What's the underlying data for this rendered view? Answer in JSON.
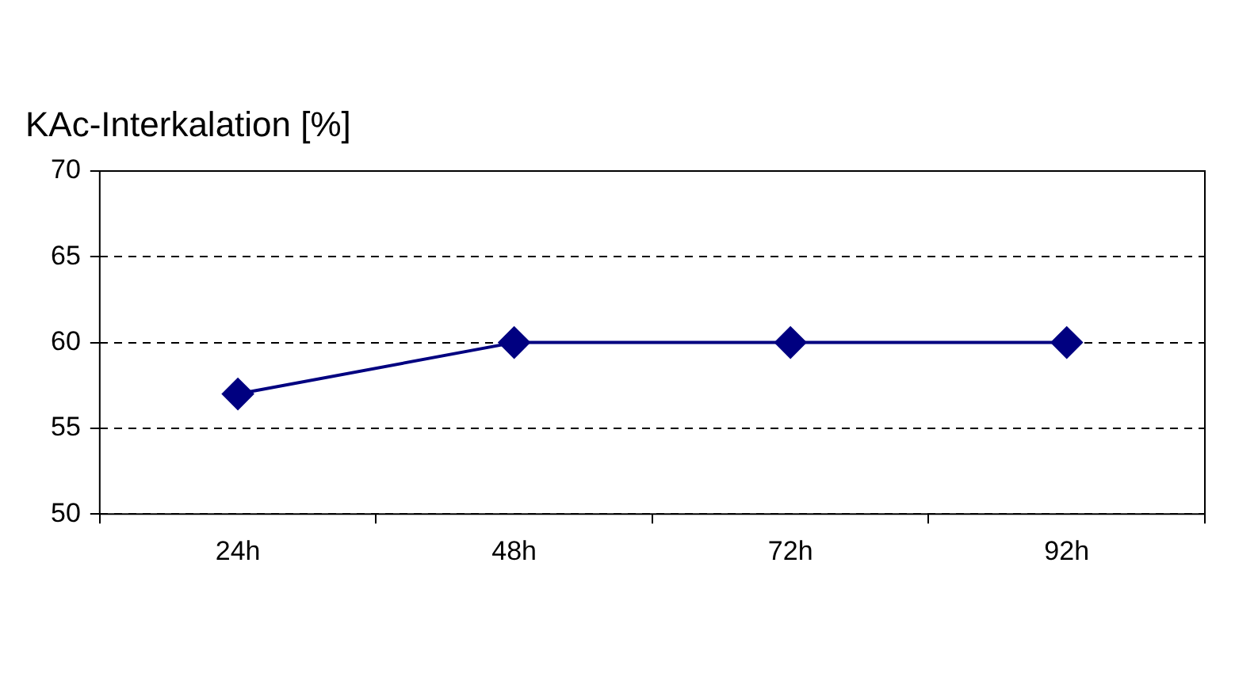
{
  "chart_data": {
    "type": "line",
    "ylabel": "KAc-Interkalation [%]",
    "categories": [
      "24h",
      "48h",
      "72h",
      "92h"
    ],
    "series": [
      {
        "color": "#000080",
        "values": [
          57,
          60,
          60,
          60
        ]
      }
    ],
    "ylim": [
      50,
      70
    ],
    "yticks": [
      50,
      55,
      60,
      65,
      70
    ],
    "grid": "y",
    "legend": false,
    "marker": "diamond",
    "line_style": "solid"
  }
}
